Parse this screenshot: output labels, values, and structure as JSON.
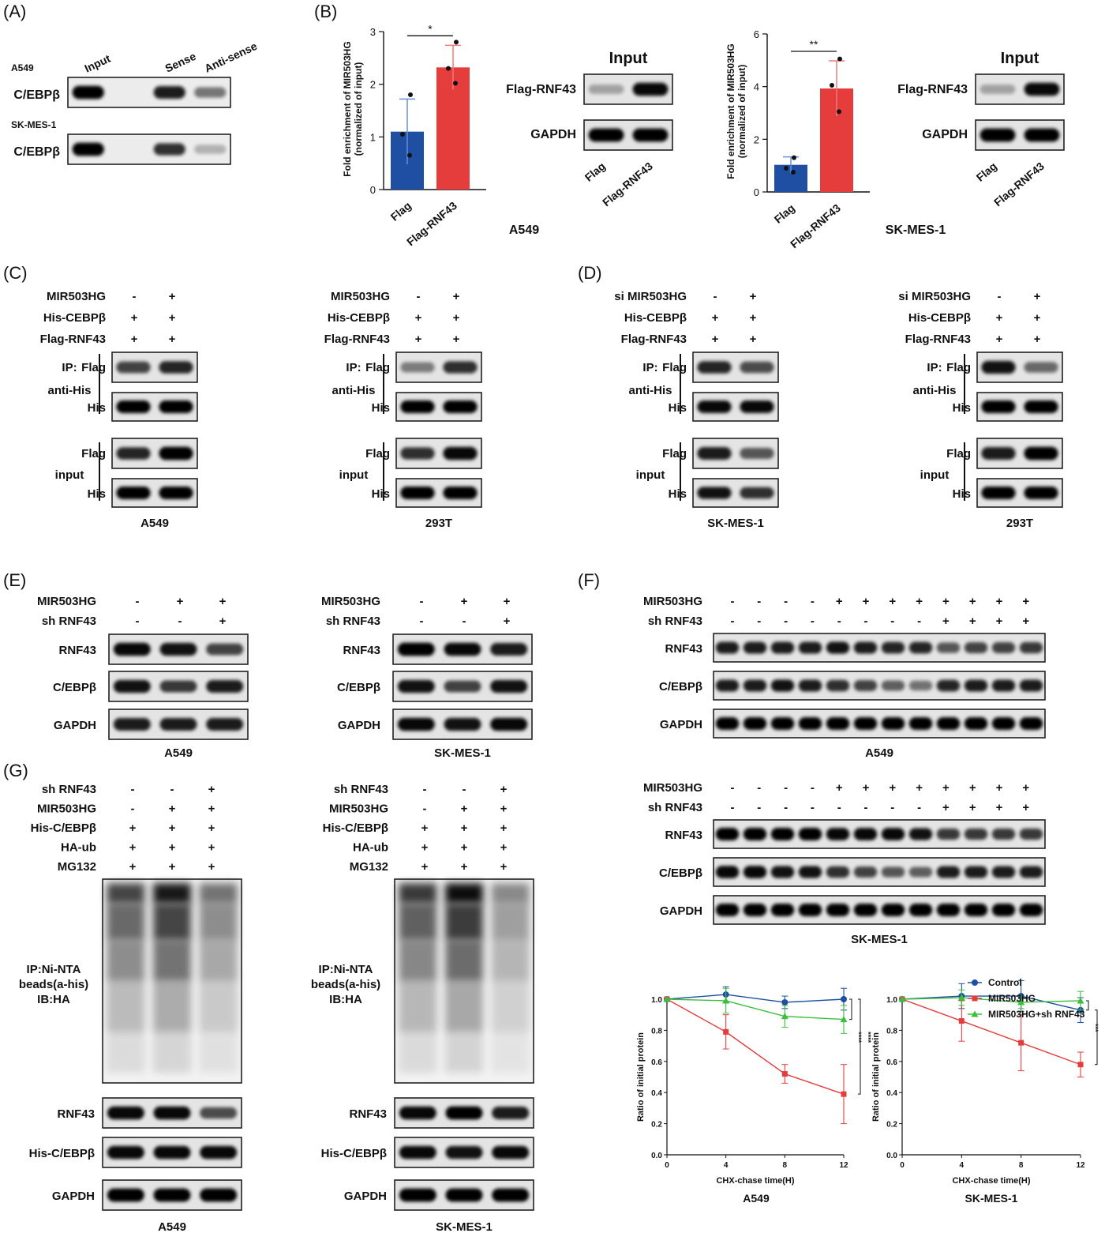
{
  "panels": {
    "A": {
      "letter": "(A)",
      "col_headers": [
        "Input",
        "Sense",
        "Anti-sense"
      ],
      "rows": [
        {
          "cell": "A549",
          "label": "C/EBPβ",
          "bands": [
            0.95,
            0.8,
            0.35
          ]
        },
        {
          "cell": "SK-MES-1",
          "label": "C/EBPβ",
          "bands": [
            0.95,
            0.7,
            0.05
          ]
        }
      ]
    },
    "B": {
      "letter": "(B)",
      "ylabel": [
        "Fold enrichment of MIR503HG",
        "(normalized of input)"
      ],
      "blot_title": "Input",
      "blot_rows": [
        "Flag-RNF43",
        "GAPDH"
      ],
      "lane_labels": [
        "Flag",
        "Flag-RNF43"
      ],
      "blot_bands": [
        [
          0.1,
          0.9
        ],
        [
          0.95,
          0.95
        ]
      ],
      "colors": {
        "bar1": "#1f4fa3",
        "bar2": "#e53c3c",
        "err1": "#6b8fd6",
        "err2": "#f07a7a"
      }
    },
    "C": {
      "letter": "(C)",
      "treat_labels": [
        "MIR503HG",
        "His-CEBPβ",
        "Flag-RNF43"
      ],
      "lanes": [
        [
          "-",
          "+"
        ],
        [
          "+",
          "+"
        ],
        [
          "+",
          "+"
        ]
      ],
      "ip_label": [
        "IP:",
        "anti-His"
      ],
      "input_label": "input",
      "row_labels": [
        "Flag",
        "His"
      ],
      "cells": [
        "A549",
        "293T"
      ],
      "bands": [
        {
          "ip": [
            [
              0.6,
              0.75
            ],
            [
              0.95,
              0.95
            ]
          ],
          "inp": [
            [
              0.75,
              0.95
            ],
            [
              0.95,
              0.95
            ]
          ]
        },
        {
          "ip": [
            [
              0.3,
              0.7
            ],
            [
              0.95,
              0.95
            ]
          ],
          "inp": [
            [
              0.7,
              0.9
            ],
            [
              0.95,
              0.95
            ]
          ]
        }
      ]
    },
    "D": {
      "letter": "(D)",
      "treat_labels": [
        "si MIR503HG",
        "His-CEBPβ",
        "Flag-RNF43"
      ],
      "lanes": [
        [
          "-",
          "+"
        ],
        [
          "+",
          "+"
        ],
        [
          "+",
          "+"
        ]
      ],
      "ip_label": [
        "IP:",
        "anti-His"
      ],
      "input_label": "input",
      "row_labels": [
        "Flag",
        "His"
      ],
      "cells": [
        "SK-MES-1",
        "293T"
      ],
      "bands": [
        {
          "ip": [
            [
              0.75,
              0.55
            ],
            [
              0.9,
              0.9
            ]
          ],
          "inp": [
            [
              0.8,
              0.5
            ],
            [
              0.85,
              0.7
            ]
          ]
        },
        {
          "ip": [
            [
              0.85,
              0.4
            ],
            [
              0.95,
              0.95
            ]
          ],
          "inp": [
            [
              0.8,
              0.95
            ],
            [
              0.95,
              0.95
            ]
          ]
        }
      ]
    },
    "E": {
      "letter": "(E)",
      "treat_labels": [
        "MIR503HG",
        "sh RNF43"
      ],
      "lanes": [
        [
          "-",
          "+",
          "+"
        ],
        [
          "-",
          "-",
          "+"
        ]
      ],
      "row_labels": [
        "RNF43",
        "C/EBPβ",
        "GAPDH"
      ],
      "cells": [
        "A549",
        "SK-MES-1"
      ],
      "bands": [
        [
          [
            0.9,
            0.85,
            0.6
          ],
          [
            0.85,
            0.65,
            0.8
          ],
          [
            0.8,
            0.8,
            0.8
          ]
        ],
        [
          [
            0.95,
            0.9,
            0.8
          ],
          [
            0.85,
            0.6,
            0.85
          ],
          [
            0.9,
            0.85,
            0.9
          ]
        ]
      ]
    },
    "F": {
      "letter": "(F)",
      "treat_labels": [
        "MIR503HG",
        "sh RNF43"
      ],
      "lanes": [
        [
          "-",
          "-",
          "-",
          "-",
          "+",
          "+",
          "+",
          "+",
          "+",
          "+",
          "+",
          "+"
        ],
        [
          "-",
          "-",
          "-",
          "-",
          "-",
          "-",
          "-",
          "-",
          "+",
          "+",
          "+",
          "+"
        ]
      ],
      "row_labels": [
        "RNF43",
        "C/EBPβ",
        "GAPDH"
      ],
      "cells": [
        "A549",
        "SK-MES-1"
      ],
      "bands": [
        [
          [
            0.8,
            0.8,
            0.8,
            0.8,
            0.85,
            0.8,
            0.75,
            0.75,
            0.5,
            0.6,
            0.6,
            0.65
          ],
          [
            0.8,
            0.8,
            0.85,
            0.8,
            0.7,
            0.6,
            0.45,
            0.35,
            0.75,
            0.8,
            0.8,
            0.8
          ],
          [
            0.95,
            0.95,
            0.95,
            0.95,
            0.95,
            0.95,
            0.95,
            0.95,
            0.95,
            0.95,
            0.95,
            0.95
          ]
        ],
        [
          [
            0.95,
            0.95,
            0.95,
            0.95,
            0.9,
            0.9,
            0.9,
            0.85,
            0.65,
            0.65,
            0.65,
            0.65
          ],
          [
            0.9,
            0.9,
            0.85,
            0.85,
            0.7,
            0.6,
            0.5,
            0.45,
            0.8,
            0.8,
            0.8,
            0.8
          ],
          [
            0.95,
            0.95,
            0.95,
            0.95,
            0.95,
            0.95,
            0.95,
            0.95,
            0.95,
            0.95,
            0.95,
            0.95
          ]
        ]
      ]
    },
    "G": {
      "letter": "(G)",
      "treat_labels": [
        "sh RNF43",
        "MIR503HG",
        "His-C/EBPβ",
        "HA-ub",
        "MG132"
      ],
      "lanes": [
        [
          "-",
          "-",
          "+"
        ],
        [
          "-",
          "+",
          "+"
        ],
        [
          "+",
          "+",
          "+"
        ],
        [
          "+",
          "+",
          "+"
        ],
        [
          "+",
          "+",
          "+"
        ]
      ],
      "ip_label": [
        "IP:Ni-NTA",
        "beads(a-his)",
        "IB:HA"
      ],
      "row_labels": [
        "RNF43",
        "His-C/EBPβ",
        "GAPDH"
      ],
      "cells": [
        "A549",
        "SK-MES-1"
      ],
      "smear": [
        [
          0.75,
          0.95,
          0.55
        ],
        [
          0.8,
          1.0,
          0.45
        ]
      ],
      "bands": [
        [
          [
            0.9,
            0.9,
            0.55
          ],
          [
            0.9,
            0.9,
            0.9
          ],
          [
            0.95,
            0.95,
            0.95
          ]
        ],
        [
          [
            0.9,
            0.95,
            0.8
          ],
          [
            0.9,
            0.85,
            0.9
          ],
          [
            0.95,
            0.95,
            0.95
          ]
        ]
      ]
    }
  },
  "chart_data": [
    {
      "type": "bar",
      "panel": "B",
      "title": "A549",
      "categories": [
        "Flag",
        "Flag-RNF43"
      ],
      "values": [
        1.1,
        2.32
      ],
      "errors": [
        0.62,
        0.42
      ],
      "points": [
        [
          1.8,
          1.05,
          0.65
        ],
        [
          2.8,
          2.3,
          2.02
        ]
      ],
      "ylim": [
        0,
        3
      ],
      "yticks": [
        0,
        1,
        2,
        3
      ],
      "significance": "*"
    },
    {
      "type": "bar",
      "panel": "B",
      "title": "SK-MES-1",
      "categories": [
        "Flag",
        "Flag-RNF43"
      ],
      "values": [
        1.03,
        3.93
      ],
      "errors": [
        0.3,
        1.05
      ],
      "points": [
        [
          1.3,
          0.9,
          0.75
        ],
        [
          5.05,
          4.05,
          3.05
        ]
      ],
      "ylim": [
        0,
        6
      ],
      "yticks": [
        0,
        2,
        4,
        6
      ],
      "significance": "**"
    },
    {
      "type": "line",
      "panel": "F",
      "title": "A549",
      "xlabel": "CHX-chase time(H)",
      "ylabel": "Ratio of initial protein",
      "x": [
        0,
        4,
        8,
        12
      ],
      "xlim": [
        0,
        12
      ],
      "ylim": [
        0,
        1.0
      ],
      "yticks": [
        0.0,
        0.2,
        0.4,
        0.6,
        0.8,
        1.0
      ],
      "series": [
        {
          "name": "Control",
          "values": [
            1.0,
            1.03,
            0.98,
            1.0
          ],
          "errors": [
            0,
            0.05,
            0.04,
            0.07
          ],
          "color": "#1f4fa3",
          "marker": "circle"
        },
        {
          "name": "MIR503HG",
          "values": [
            1.0,
            0.79,
            0.52,
            0.39
          ],
          "errors": [
            0,
            0.11,
            0.06,
            0.19
          ],
          "color": "#e53c3c",
          "marker": "square"
        },
        {
          "name": "MIR503HG+sh RNF43",
          "values": [
            1.0,
            0.99,
            0.89,
            0.87
          ],
          "errors": [
            0,
            0.08,
            0.07,
            0.09
          ],
          "color": "#3cbf3c",
          "marker": "triangle"
        }
      ],
      "significance": [
        "****",
        "****"
      ]
    },
    {
      "type": "line",
      "panel": "F",
      "title": "SK-MES-1",
      "xlabel": "CHX-chase time(H)",
      "ylabel": "Ratio of initial protein",
      "x": [
        0,
        4,
        8,
        12
      ],
      "xlim": [
        0,
        12
      ],
      "ylim": [
        0,
        1.0
      ],
      "yticks": [
        0.0,
        0.2,
        0.4,
        0.6,
        0.8,
        1.0
      ],
      "series": [
        {
          "name": "Control",
          "values": [
            1.0,
            1.02,
            1.02,
            0.93
          ],
          "errors": [
            0,
            0.08,
            0.1,
            0.08
          ],
          "color": "#1f4fa3",
          "marker": "circle"
        },
        {
          "name": "MIR503HG",
          "values": [
            1.0,
            0.86,
            0.72,
            0.58
          ],
          "errors": [
            0,
            0.13,
            0.18,
            0.08
          ],
          "color": "#e53c3c",
          "marker": "square"
        },
        {
          "name": "MIR503HG+sh RNF43",
          "values": [
            1.0,
            1.01,
            0.98,
            0.99
          ],
          "errors": [
            0,
            0.05,
            0.04,
            0.06
          ],
          "color": "#3cbf3c",
          "marker": "triangle"
        }
      ],
      "significance": [
        "***",
        "****"
      ]
    }
  ]
}
